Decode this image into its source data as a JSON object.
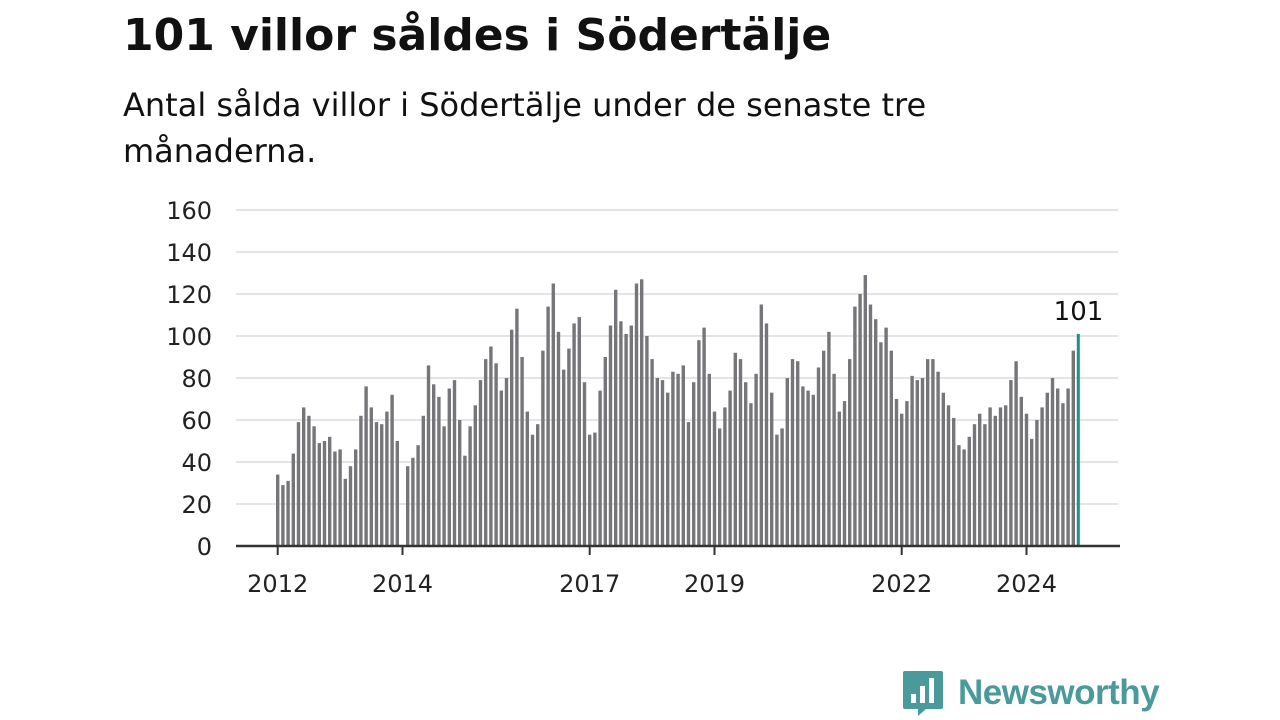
{
  "title": "101 villor såldes i Södertälje",
  "subtitle": "Antal sålda villor i Södertälje under de senaste tre månaderna.",
  "brand": {
    "name": "Newsworthy",
    "icon": "newsworthy-chart-bubble-icon",
    "color": "#4a9a9b"
  },
  "chart_data": {
    "type": "bar",
    "title": "",
    "xlabel": "",
    "ylabel": "",
    "ylim": [
      0,
      160
    ],
    "yticks": [
      0,
      20,
      40,
      60,
      80,
      100,
      120,
      140,
      160
    ],
    "grid": true,
    "x_tick_labels": [
      {
        "label": "2012",
        "index": 0
      },
      {
        "label": "2014",
        "index": 24
      },
      {
        "label": "2017",
        "index": 60
      },
      {
        "label": "2019",
        "index": 84
      },
      {
        "label": "2022",
        "index": 120
      },
      {
        "label": "2024",
        "index": 144
      }
    ],
    "period": "Monthly, rolling three-month totals, 2012 onward",
    "values": [
      34,
      29,
      31,
      44,
      59,
      66,
      62,
      57,
      49,
      50,
      52,
      45,
      46,
      32,
      38,
      46,
      62,
      76,
      66,
      59,
      58,
      64,
      72,
      50,
      0,
      38,
      42,
      48,
      62,
      86,
      77,
      71,
      57,
      75,
      79,
      60,
      43,
      57,
      67,
      79,
      89,
      95,
      87,
      74,
      80,
      103,
      113,
      90,
      64,
      53,
      58,
      93,
      114,
      125,
      102,
      84,
      94,
      106,
      109,
      78,
      53,
      54,
      74,
      90,
      105,
      122,
      107,
      101,
      105,
      125,
      127,
      100,
      89,
      80,
      79,
      73,
      83,
      82,
      86,
      59,
      78,
      98,
      104,
      82,
      64,
      56,
      66,
      74,
      92,
      89,
      78,
      68,
      82,
      115,
      106,
      73,
      53,
      56,
      80,
      89,
      88,
      76,
      74,
      72,
      85,
      93,
      102,
      82,
      64,
      69,
      89,
      114,
      120,
      129,
      115,
      108,
      97,
      104,
      93,
      70,
      63,
      69,
      81,
      79,
      80,
      89,
      89,
      83,
      73,
      67,
      61,
      48,
      46,
      52,
      58,
      63,
      58,
      66,
      62,
      66,
      67,
      79,
      88,
      71,
      63,
      51,
      60,
      66,
      73,
      80,
      75,
      68,
      75,
      93,
      101
    ],
    "highlight": {
      "index": 154,
      "value": 101,
      "label": "101"
    },
    "colors": {
      "bar": "#76757a",
      "highlight": "#14968a",
      "grid": "#dcdcdc",
      "axis": "#333333"
    }
  }
}
